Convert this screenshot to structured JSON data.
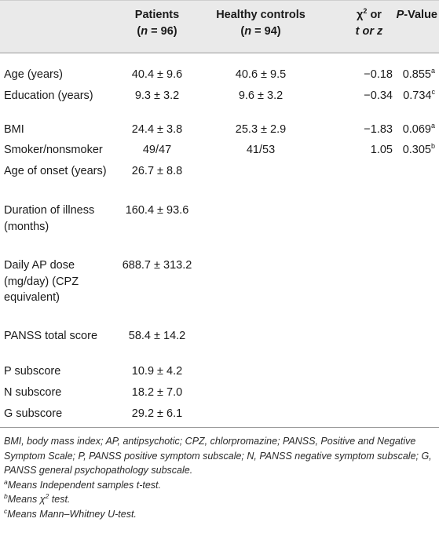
{
  "header": {
    "patients_line1": "Patients",
    "patients_n_italic": "n",
    "patients_n_rest": " = 96)",
    "controls_line1": "Healthy controls",
    "controls_n_italic": "n",
    "controls_n_rest": " = 94)",
    "stat_line1_a": "χ",
    "stat_line1_sup": "2",
    "stat_line1_b": " or",
    "stat_line2": "t or z",
    "pvalue_italic": "P",
    "pvalue_rest": "-Value"
  },
  "rows": [
    {
      "label": "Age (years)",
      "patients": "40.4 ± 9.6",
      "controls": "40.6 ± 9.5",
      "stat": "−0.18",
      "p": "0.855",
      "p_sup": "a"
    },
    {
      "label": "Education (years)",
      "patients": "9.3 ± 3.2",
      "controls": "9.6 ± 3.2",
      "stat": "−0.34",
      "p": "0.734",
      "p_sup": "c"
    },
    {
      "label": "BMI",
      "patients": "24.4 ± 3.8",
      "controls": "25.3 ± 2.9",
      "stat": "−1.83",
      "p": "0.069",
      "p_sup": "a"
    },
    {
      "label": "Smoker/nonsmoker",
      "patients": "49/47",
      "controls": "41/53",
      "stat": "1.05",
      "p": "0.305",
      "p_sup": "b"
    },
    {
      "label": "Age of onset (years)",
      "patients": "26.7 ± 8.8",
      "controls": "",
      "stat": "",
      "p": "",
      "p_sup": ""
    },
    {
      "label": "Duration of illness (months)",
      "patients": "160.4 ± 93.6",
      "controls": "",
      "stat": "",
      "p": "",
      "p_sup": ""
    },
    {
      "label": "Daily AP dose (mg/day) (CPZ equivalent)",
      "patients": "688.7 ± 313.2",
      "controls": "",
      "stat": "",
      "p": "",
      "p_sup": ""
    },
    {
      "label": "PANSS total score",
      "patients": "58.4 ± 14.2",
      "controls": "",
      "stat": "",
      "p": "",
      "p_sup": ""
    },
    {
      "label": "P subscore",
      "patients": "10.9 ± 4.2",
      "controls": "",
      "stat": "",
      "p": "",
      "p_sup": ""
    },
    {
      "label": "N subscore",
      "patients": "18.2 ± 7.0",
      "controls": "",
      "stat": "",
      "p": "",
      "p_sup": ""
    },
    {
      "label": "G subscore",
      "patients": "29.2 ± 6.1",
      "controls": "",
      "stat": "",
      "p": "",
      "p_sup": ""
    }
  ],
  "footnotes": {
    "abbrev": "BMI, body mass index; AP, antipsychotic; CPZ, chlorpromazine; PANSS, Positive and Negative Symptom Scale; P, PANSS positive symptom subscale; N, PANSS negative symptom subscale; G, PANSS general psychopathology subscale.",
    "a_sup": "a",
    "a_text": "Means Independent samples t-test.",
    "b_sup": "b",
    "b_text_1": "Means χ",
    "b_text_sup": "2",
    "b_text_2": " test.",
    "c_sup": "c",
    "c_text": "Means Mann–Whitney U-test."
  }
}
